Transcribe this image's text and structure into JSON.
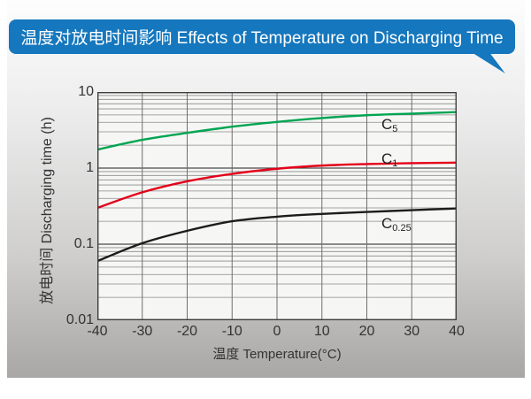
{
  "banner": {
    "title": "温度对放电时间影响 Effects of Temperature on Discharging Time"
  },
  "colors": {
    "banner_bg": "#1577bd",
    "banner_text": "#ffffff",
    "plot_bg": "#f6f6f4",
    "grid_minor": "#8a8a8a",
    "grid_major": "#4a4a4a",
    "grid_vertical": "#6e6e6e",
    "plot_border": "#3d3d3d",
    "axis_text": "#333333"
  },
  "chart_data": {
    "type": "line",
    "title": "温度对放电时间影响 Effects of Temperature on Discharging Time",
    "xlabel": "温度  Temperature(°C)",
    "ylabel": "放电时间 Discharging time (h)",
    "x_axis": {
      "min": -40,
      "max": 40,
      "ticks": [
        -40,
        -30,
        -20,
        -10,
        0,
        10,
        20,
        30,
        40
      ]
    },
    "y_axis": {
      "scale": "log",
      "min": 0.01,
      "max": 10,
      "tick_labels": [
        "10",
        "1",
        "0.1",
        "0.01"
      ],
      "tick_values": [
        10,
        1,
        0.1,
        0.01
      ]
    },
    "grid": {
      "horizontal": "log minor lines at 2-9 of each decade, major lines at decades",
      "vertical": "every 10 degrees C"
    },
    "x": [
      -40,
      -30,
      -20,
      -10,
      0,
      10,
      20,
      30,
      40
    ],
    "series": [
      {
        "name": "C5",
        "label_main": "C",
        "label_sub": "5",
        "color": "#00a551",
        "values": [
          1.75,
          2.35,
          2.9,
          3.5,
          4.05,
          4.55,
          4.95,
          5.2,
          5.45
        ]
      },
      {
        "name": "C1",
        "label_main": "C",
        "label_sub": "1",
        "color": "#e30019",
        "values": [
          0.3,
          0.48,
          0.67,
          0.84,
          0.98,
          1.08,
          1.13,
          1.16,
          1.18
        ]
      },
      {
        "name": "C0.25",
        "label_main": "C",
        "label_sub": "0.25",
        "color": "#1c1c1c",
        "values": [
          0.06,
          0.103,
          0.15,
          0.2,
          0.23,
          0.25,
          0.265,
          0.28,
          0.295
        ]
      }
    ],
    "legend_position": "inline labels beside each curve"
  }
}
